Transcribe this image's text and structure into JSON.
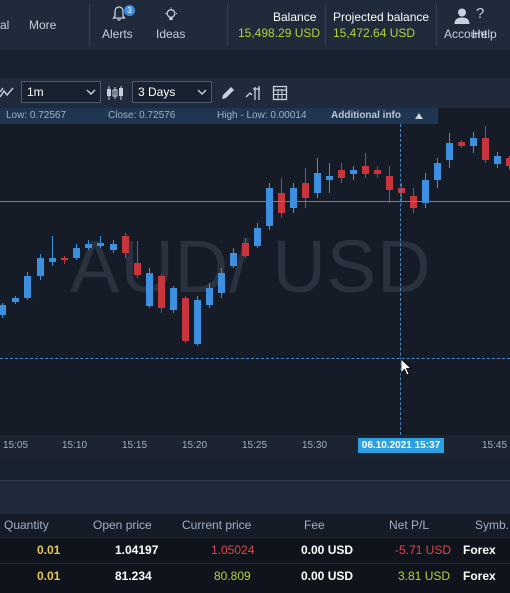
{
  "nav": {
    "item1": "al",
    "more": "More",
    "alerts": "Alerts",
    "alerts_badge": "3",
    "ideas": "Ideas",
    "account": "Account",
    "help": "Help"
  },
  "balance": {
    "label": "Balance",
    "value": "15,498.29 USD"
  },
  "projected": {
    "label": "Projected balance",
    "value": "15,472.64 USD"
  },
  "toolbar": {
    "interval": "1m",
    "range": "3 Days"
  },
  "info": {
    "low": "Low:  0.72567",
    "close": "Close:  0.72576",
    "high_low": "High - Low:  0.00014",
    "additional": "Additional info"
  },
  "chart": {
    "watermark": "AUD/ USD",
    "times": [
      "15:05",
      "15:10",
      "15:15",
      "15:20",
      "15:25",
      "15:30",
      "15:45"
    ],
    "crosshair_label": "06.10.2021 15:37"
  },
  "table": {
    "headers": [
      "Quantity",
      "Open price",
      "Current price",
      "Fee",
      "Net P/L",
      "Symb."
    ],
    "rows": [
      {
        "qty": "0.01",
        "open": "1.04197",
        "current": "1.05024",
        "fee": "0.00 USD",
        "pl": "-5.71 USD",
        "symbol": "Forex",
        "current_color": "#e0474b",
        "pl_color": "#e0474b"
      },
      {
        "qty": "0.01",
        "open": "81.234",
        "current": "80.809",
        "fee": "0.00 USD",
        "pl": "3.81 USD",
        "symbol": "Forex",
        "current_color": "#b5d43a",
        "pl_color": "#b5d43a"
      }
    ]
  },
  "colors": {
    "up": "#3d8fe0",
    "down": "#c8353c",
    "accent": "#b5d43a"
  }
}
